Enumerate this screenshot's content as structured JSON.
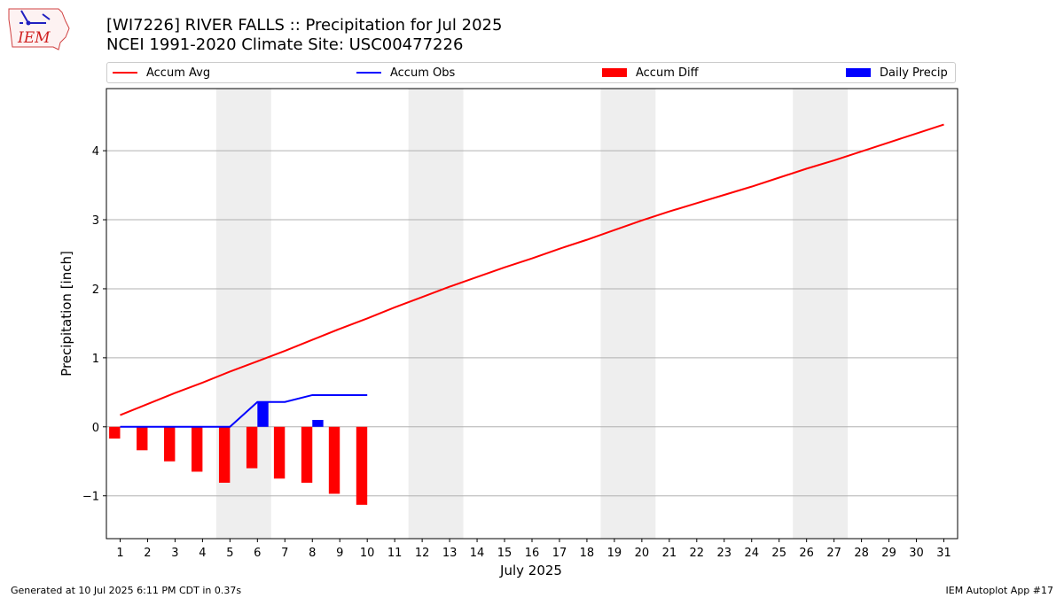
{
  "header": {
    "title_line1": "[WI7226] RIVER FALLS :: Precipitation for Jul 2025",
    "title_line2": "NCEI 1991-2020 Climate Site: USC00477226"
  },
  "logo": {
    "text": "IEM"
  },
  "footer": {
    "left": "Generated at 10 Jul 2025 6:11 PM CDT in 0.37s",
    "right": "IEM Autoplot App #17"
  },
  "legend": {
    "items": [
      {
        "label": "Accum Avg",
        "kind": "line",
        "color": "#ff0000"
      },
      {
        "label": "Accum Obs",
        "kind": "line",
        "color": "#0000ff"
      },
      {
        "label": "Accum Diff",
        "kind": "box",
        "color": "#ff0000"
      },
      {
        "label": "Daily Precip",
        "kind": "box",
        "color": "#0000ff"
      }
    ]
  },
  "chart_data": {
    "type": "bar",
    "title": "[WI7226] RIVER FALLS :: Precipitation for Jul 2025",
    "subtitle": "NCEI 1991-2020 Climate Site: USC00477226",
    "xlabel": "July 2025",
    "ylabel": "Precipitation [inch]",
    "x": [
      1,
      2,
      3,
      4,
      5,
      6,
      7,
      8,
      9,
      10,
      11,
      12,
      13,
      14,
      15,
      16,
      17,
      18,
      19,
      20,
      21,
      22,
      23,
      24,
      25,
      26,
      27,
      28,
      29,
      30,
      31
    ],
    "xlim": [
      0.5,
      31.5
    ],
    "ylim": [
      -1.62,
      4.9
    ],
    "yticks": [
      -1,
      0,
      1,
      2,
      3,
      4
    ],
    "ytick_labels": [
      "−1",
      "0",
      "1",
      "2",
      "3",
      "4"
    ],
    "grid": "horizontal",
    "legend_position": "top",
    "weekend_shading": [
      [
        4.5,
        6.5
      ],
      [
        11.5,
        13.5
      ],
      [
        18.5,
        20.5
      ],
      [
        25.5,
        27.5
      ]
    ],
    "series": [
      {
        "name": "Accum Avg",
        "kind": "line",
        "color": "#ff0000",
        "x": [
          1,
          2,
          3,
          4,
          5,
          6,
          7,
          8,
          9,
          10,
          11,
          12,
          13,
          14,
          15,
          16,
          17,
          18,
          19,
          20,
          21,
          22,
          23,
          24,
          25,
          26,
          27,
          28,
          29,
          30,
          31
        ],
        "values": [
          0.17,
          0.33,
          0.49,
          0.64,
          0.8,
          0.95,
          1.1,
          1.26,
          1.42,
          1.57,
          1.73,
          1.88,
          2.03,
          2.17,
          2.31,
          2.44,
          2.58,
          2.71,
          2.85,
          2.99,
          3.12,
          3.24,
          3.36,
          3.48,
          3.61,
          3.74,
          3.86,
          3.99,
          4.12,
          4.25,
          4.38
        ]
      },
      {
        "name": "Accum Obs",
        "kind": "line",
        "color": "#0000ff",
        "x": [
          1,
          2,
          3,
          4,
          5,
          6,
          7,
          8,
          9,
          10
        ],
        "values": [
          0.0,
          0.0,
          0.0,
          0.0,
          0.0,
          0.36,
          0.36,
          0.46,
          0.46,
          0.46
        ]
      },
      {
        "name": "Accum Diff",
        "kind": "bar",
        "color": "#ff0000",
        "x": [
          1,
          2,
          3,
          4,
          5,
          6,
          7,
          8,
          9,
          10
        ],
        "values": [
          -0.17,
          -0.34,
          -0.5,
          -0.65,
          -0.81,
          -0.6,
          -0.75,
          -0.81,
          -0.97,
          -1.13
        ]
      },
      {
        "name": "Daily Precip",
        "kind": "bar",
        "color": "#0000ff",
        "x": [
          6,
          8
        ],
        "values": [
          0.36,
          0.1
        ]
      }
    ]
  }
}
